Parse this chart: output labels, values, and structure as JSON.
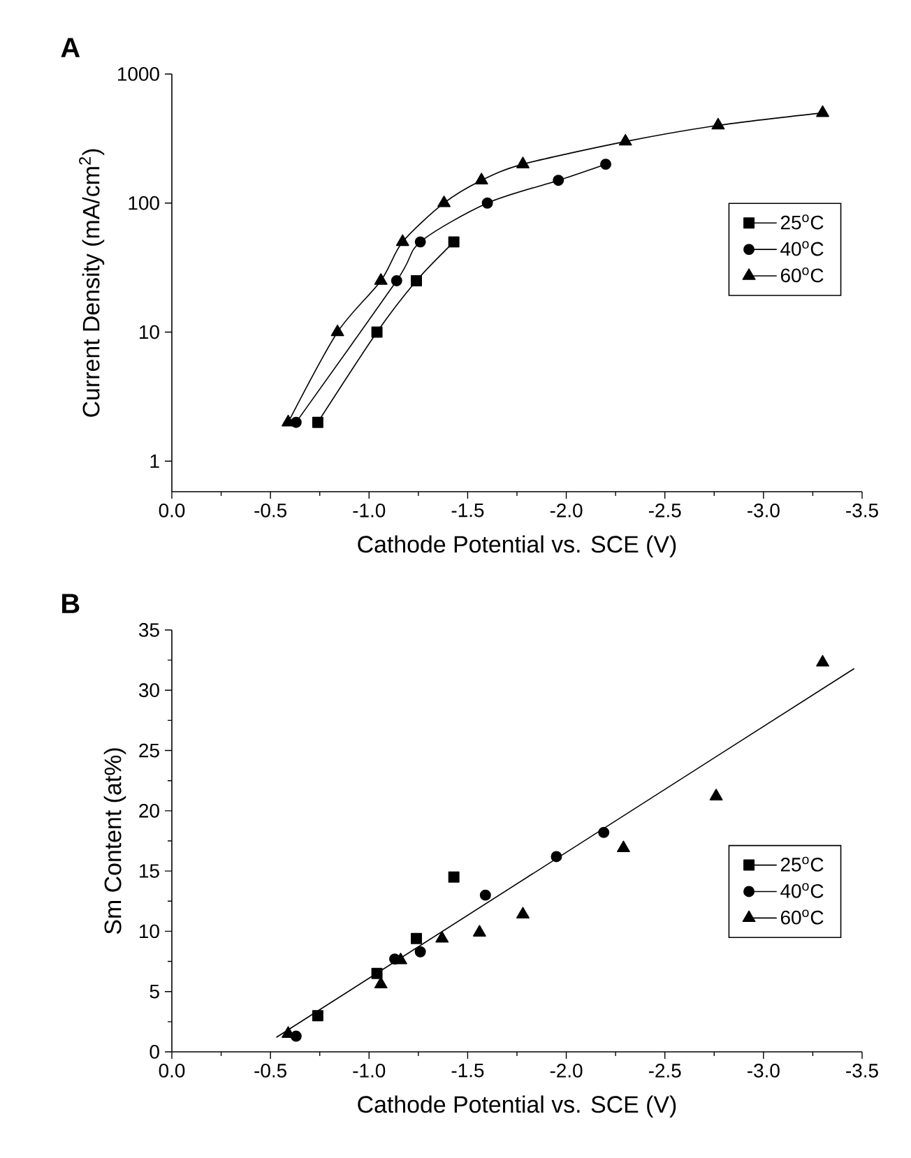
{
  "chart_data": [
    {
      "type": "line",
      "title": "A",
      "xlabel": "Cathode Potential vs. SCE (V)",
      "ylabel": "Current Density (mA/cm$^{2}$)",
      "log": "y",
      "legend": "right",
      "xlim": [
        0,
        -3.5
      ],
      "xticks": [
        {
          "value": 0,
          "label": "0.0"
        },
        {
          "value": -0.5,
          "label": "-0.5"
        },
        {
          "value": -1,
          "label": "-1.0"
        },
        {
          "value": -1.5,
          "label": "-1.5"
        },
        {
          "value": -2,
          "label": "-2.0"
        },
        {
          "value": -2.5,
          "label": "-2.5"
        },
        {
          "value": -3,
          "label": "-3.0"
        },
        {
          "value": -3.5,
          "label": "-3.5"
        }
      ],
      "ylim": [
        0.58,
        1000
      ],
      "yticks": [
        1,
        10,
        100,
        1000
      ],
      "series": [
        {
          "name": "25$^{o}$C",
          "color": "#000000",
          "marker": "square",
          "x": [
            -0.74,
            -1.04,
            -1.24,
            -1.43
          ],
          "values": [
            2,
            10,
            25,
            50
          ]
        },
        {
          "name": "40$^{o}$C",
          "color": "#000000",
          "marker": "circle",
          "x": [
            -0.63,
            -1.14,
            -1.26,
            -1.6,
            -1.96,
            -2.2
          ],
          "values": [
            2,
            25,
            50,
            100,
            150,
            200
          ]
        },
        {
          "name": "60$^{o}$C",
          "color": "#000000",
          "marker": "triangle",
          "x": [
            -0.59,
            -0.84,
            -1.06,
            -1.17,
            -1.38,
            -1.57,
            -1.78,
            -2.3,
            -2.77,
            -3.3
          ],
          "values": [
            2,
            10,
            25,
            50,
            100,
            150,
            200,
            300,
            400,
            500
          ]
        }
      ]
    },
    {
      "type": "scatter",
      "title": "B",
      "xlabel": "Cathode Potential vs. SCE (V)",
      "ylabel": "Sm Content (at%)",
      "legend": "bottom right",
      "xlim": [
        0,
        -3.5
      ],
      "xticks": [
        {
          "value": 0,
          "label": "0.0"
        },
        {
          "value": -0.5,
          "label": "-0.5"
        },
        {
          "value": -1,
          "label": "-1.0"
        },
        {
          "value": -1.5,
          "label": "-1.5"
        },
        {
          "value": -2,
          "label": "-2.0"
        },
        {
          "value": -2.5,
          "label": "-2.5"
        },
        {
          "value": -3,
          "label": "-3.0"
        },
        {
          "value": -3.5,
          "label": "-3.5"
        }
      ],
      "ylim": [
        0,
        35
      ],
      "yticks": [
        0,
        5,
        10,
        15,
        20,
        25,
        30,
        35
      ],
      "series": [
        {
          "name": "25$^{o}$C",
          "color": "#000000",
          "marker": "square",
          "x": [
            -0.74,
            -1.04,
            -1.24,
            -1.43
          ],
          "values": [
            3.0,
            6.5,
            9.4,
            14.5
          ]
        },
        {
          "name": "40$^{o}$C",
          "color": "#000000",
          "marker": "circle",
          "x": [
            -0.63,
            -1.13,
            -1.26,
            -1.59,
            -1.95,
            -2.19
          ],
          "values": [
            1.3,
            7.7,
            8.3,
            13.0,
            16.2,
            18.2
          ]
        },
        {
          "name": "60$^{o}$C",
          "color": "#000000",
          "marker": "triangle",
          "x": [
            -0.59,
            -1.06,
            -1.16,
            -1.37,
            -1.56,
            -1.78,
            -2.29,
            -2.76,
            -3.3
          ],
          "values": [
            1.5,
            5.6,
            7.6,
            9.4,
            9.9,
            11.4,
            16.9,
            21.2,
            32.3
          ]
        },
        {
          "type": "line",
          "color": "#000000",
          "marker": "none",
          "x": [
            -0.53,
            -3.46
          ],
          "values": [
            1.2,
            31.8
          ]
        }
      ]
    }
  ]
}
